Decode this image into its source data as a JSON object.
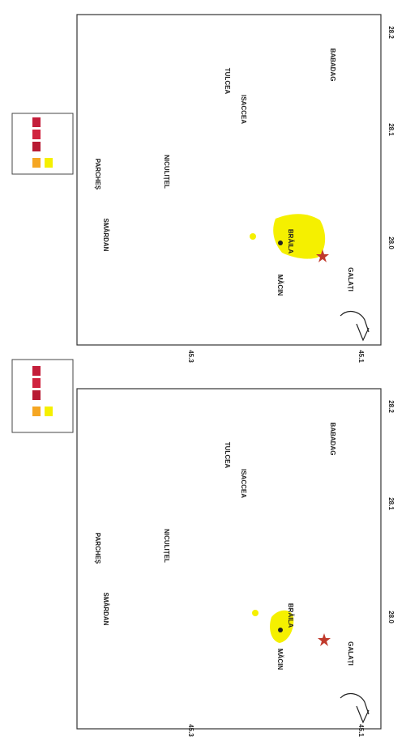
{
  "maps": [
    {
      "place_labels": [
        "MĂCIN",
        "BRĂILA",
        "GALAȚI",
        "TULCEA",
        "ISACCEA",
        "NICULIȚEL",
        "SMÂRDAN",
        "PARCHEȘ",
        "BABADAG"
      ],
      "right_ticks": [
        "28.2",
        "28.1",
        "28.0"
      ],
      "left_ticks": [
        "45.3",
        "45.1"
      ]
    },
    {
      "place_labels": [
        "MĂCIN",
        "BRĂILA",
        "GALAȚI",
        "TULCEA",
        "ISACCEA",
        "NICULIȚEL",
        "SMÂRDAN",
        "PARCHEȘ",
        "BABADAG"
      ],
      "right_ticks": [
        "28.2",
        "28.1",
        "28.0"
      ],
      "left_ticks": [
        "45.3",
        "45.1"
      ]
    }
  ]
}
